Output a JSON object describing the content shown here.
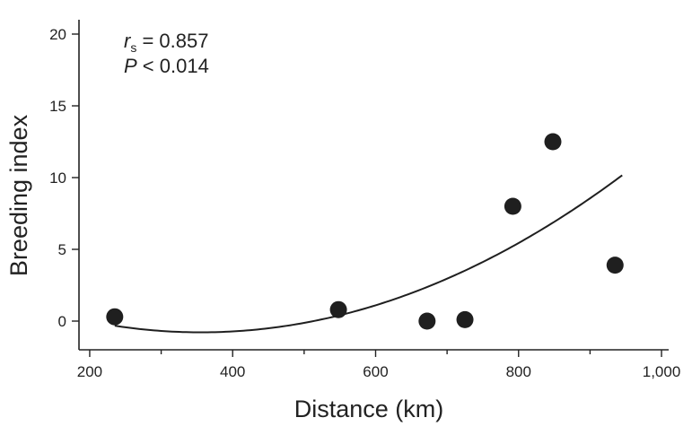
{
  "chart_data": {
    "type": "scatter",
    "title": "",
    "xlabel": "Distance (km)",
    "ylabel": "Breeding index",
    "xlim": [
      185,
      1010
    ],
    "ylim": [
      -2,
      21
    ],
    "x_ticks": [
      200,
      400,
      600,
      800,
      1000
    ],
    "x_tick_labels": [
      "200",
      "400",
      "600",
      "800",
      "1,000"
    ],
    "y_ticks": [
      0,
      5,
      10,
      15,
      20
    ],
    "y_tick_labels": [
      "0",
      "5",
      "10",
      "15",
      "20"
    ],
    "series": [
      {
        "points": [
          {
            "x": 235,
            "y": 0.3
          },
          {
            "x": 548,
            "y": 0.8
          },
          {
            "x": 672,
            "y": 0.0
          },
          {
            "x": 725,
            "y": 0.1
          },
          {
            "x": 792,
            "y": 8.0
          },
          {
            "x": 848,
            "y": 12.5
          },
          {
            "x": 935,
            "y": 3.9
          }
        ],
        "color": "#1f1f1f"
      }
    ],
    "trend_line": {
      "type": "quadratic",
      "coefficients": [
        3.2,
        -0.0224,
        3.15e-05
      ],
      "x_range": [
        235,
        945
      ],
      "color": "#1f1f1f"
    },
    "annotations": {
      "r_symbol": "r",
      "r_subscript": "s",
      "r_value": " = 0.857",
      "p_symbol": "P",
      "p_value": " < 0.014"
    },
    "grid": false
  }
}
